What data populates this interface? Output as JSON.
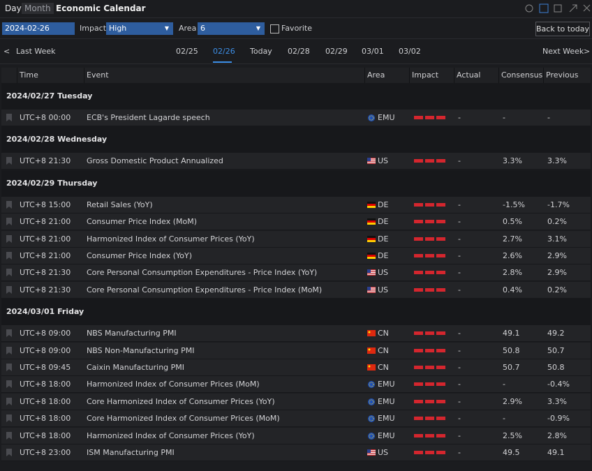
{
  "header": {
    "tabs": [
      "Day",
      "Month"
    ],
    "title": "Economic Calendar"
  },
  "filters": {
    "date": "2024-02-26",
    "impact_label": "Impact",
    "impact": "High",
    "area_label": "Area",
    "area": "6",
    "favorite": "Favorite",
    "back": "Back to today"
  },
  "nav": {
    "prev": "Last Week",
    "dates": [
      "02/25",
      "02/26",
      "Today",
      "02/28",
      "02/29",
      "03/01",
      "03/02"
    ],
    "next": "Next Week"
  },
  "table": {
    "columns": [
      "Time",
      "Event",
      "Area",
      "Impact",
      "Actual",
      "Consensus",
      "Previous"
    ],
    "groups": [
      {
        "date": "2024/02/27 Tuesday",
        "rows": [
          {
            "time": "UTC+8 00:00",
            "event": "ECB's President Lagarde speech",
            "area": "EMU",
            "actual": "-",
            "consensus": "-",
            "previous": "-"
          }
        ]
      },
      {
        "date": "2024/02/28 Wednesday",
        "rows": [
          {
            "time": "UTC+8 21:30",
            "event": "Gross Domestic Product Annualized",
            "area": "US",
            "actual": "-",
            "consensus": "3.3%",
            "previous": "3.3%"
          }
        ]
      },
      {
        "date": "2024/02/29 Thursday",
        "rows": [
          {
            "time": "UTC+8 15:00",
            "event": "Retail Sales (YoY)",
            "area": "DE",
            "actual": "-",
            "consensus": "-1.5%",
            "previous": "-1.7%"
          },
          {
            "time": "UTC+8 21:00",
            "event": "Consumer Price Index (MoM)",
            "area": "DE",
            "actual": "-",
            "consensus": "0.5%",
            "previous": "0.2%"
          },
          {
            "time": "UTC+8 21:00",
            "event": "Harmonized Index of Consumer Prices (YoY)",
            "area": "DE",
            "actual": "-",
            "consensus": "2.7%",
            "previous": "3.1%"
          },
          {
            "time": "UTC+8 21:00",
            "event": "Consumer Price Index (YoY)",
            "area": "DE",
            "actual": "-",
            "consensus": "2.6%",
            "previous": "2.9%"
          },
          {
            "time": "UTC+8 21:30",
            "event": "Core Personal Consumption Expenditures - Price Index (YoY)",
            "area": "US",
            "actual": "-",
            "consensus": "2.8%",
            "previous": "2.9%"
          },
          {
            "time": "UTC+8 21:30",
            "event": "Core Personal Consumption Expenditures - Price Index (MoM)",
            "area": "US",
            "actual": "-",
            "consensus": "0.4%",
            "previous": "0.2%"
          }
        ]
      },
      {
        "date": "2024/03/01 Friday",
        "rows": [
          {
            "time": "UTC+8 09:00",
            "event": "NBS Manufacturing PMI",
            "area": "CN",
            "actual": "-",
            "consensus": "49.1",
            "previous": "49.2"
          },
          {
            "time": "UTC+8 09:00",
            "event": "NBS Non-Manufacturing PMI",
            "area": "CN",
            "actual": "-",
            "consensus": "50.8",
            "previous": "50.7"
          },
          {
            "time": "UTC+8 09:45",
            "event": "Caixin Manufacturing PMI",
            "area": "CN",
            "actual": "-",
            "consensus": "50.7",
            "previous": "50.8"
          },
          {
            "time": "UTC+8 18:00",
            "event": "Harmonized Index of Consumer Prices (MoM)",
            "area": "EMU",
            "actual": "-",
            "consensus": "-",
            "previous": "-0.4%"
          },
          {
            "time": "UTC+8 18:00",
            "event": "Core Harmonized Index of Consumer Prices (YoY)",
            "area": "EMU",
            "actual": "-",
            "consensus": "2.9%",
            "previous": "3.3%"
          },
          {
            "time": "UTC+8 18:00",
            "event": "Core Harmonized Index of Consumer Prices (MoM)",
            "area": "EMU",
            "actual": "-",
            "consensus": "-",
            "previous": "-0.9%"
          },
          {
            "time": "UTC+8 18:00",
            "event": "Harmonized Index of Consumer Prices (YoY)",
            "area": "EMU",
            "actual": "-",
            "consensus": "2.5%",
            "previous": "2.8%"
          },
          {
            "time": "UTC+8 23:00",
            "event": "ISM Manufacturing PMI",
            "area": "US",
            "actual": "-",
            "consensus": "49.5",
            "previous": "49.1"
          }
        ]
      }
    ]
  }
}
